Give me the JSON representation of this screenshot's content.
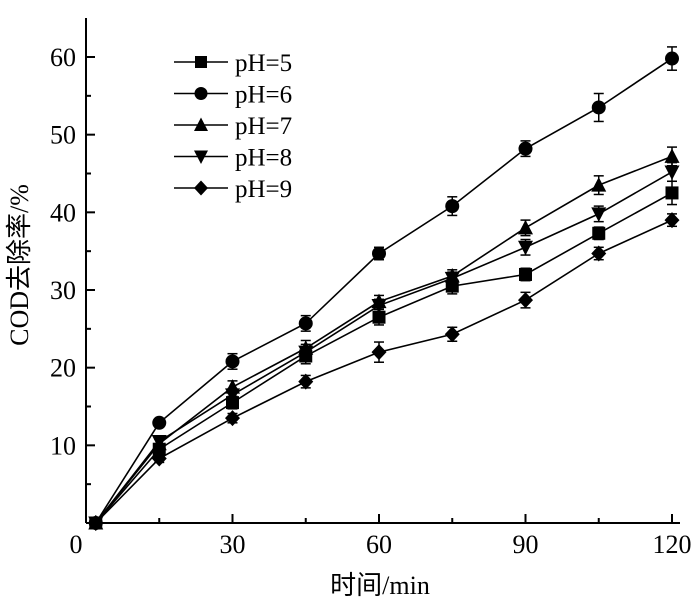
{
  "chart_data": {
    "type": "line",
    "xlabel": "时间/min",
    "ylabel": "COD去除率/%",
    "xlim": [
      0,
      120
    ],
    "ylim": [
      0,
      65
    ],
    "xticks": [
      0,
      30,
      60,
      90,
      120
    ],
    "yticks": [
      10,
      20,
      30,
      40,
      50,
      60
    ],
    "legend_position": "top-left",
    "grid": false,
    "x": [
      2,
      15,
      30,
      45,
      60,
      75,
      90,
      105,
      120
    ],
    "series": [
      {
        "name": "pH=5",
        "marker": "square",
        "values": [
          0,
          9.5,
          15.5,
          21.5,
          26.5,
          30.5,
          32,
          37.3,
          42.5
        ],
        "errors": [
          0,
          0.6,
          0.8,
          1.0,
          1.0,
          1.0,
          0.8,
          0.8,
          1.5
        ]
      },
      {
        "name": "pH=6",
        "marker": "circle",
        "values": [
          0,
          12.9,
          20.8,
          25.7,
          34.7,
          40.8,
          48.2,
          53.5,
          59.8
        ],
        "errors": [
          0,
          0.5,
          1.0,
          1.0,
          0.8,
          1.2,
          1.0,
          1.8,
          1.5
        ]
      },
      {
        "name": "pH=7",
        "marker": "triangle-up",
        "values": [
          0,
          10.2,
          17.5,
          22.5,
          28.5,
          31.8,
          38,
          43.5,
          47.2
        ],
        "errors": [
          0,
          0.6,
          0.8,
          1.0,
          0.8,
          0.8,
          1.0,
          1.2,
          1.2
        ]
      },
      {
        "name": "pH=8",
        "marker": "triangle-down",
        "values": [
          0,
          10.5,
          16.5,
          22,
          28,
          31.5,
          35.5,
          39.8,
          45.2
        ],
        "errors": [
          0,
          0.6,
          0.8,
          1.0,
          0.8,
          0.8,
          1.0,
          1.0,
          1.2
        ]
      },
      {
        "name": "pH=9",
        "marker": "diamond",
        "values": [
          0,
          8.3,
          13.5,
          18.2,
          22,
          24.3,
          28.7,
          34.7,
          39
        ],
        "errors": [
          0,
          0.5,
          0.6,
          0.8,
          1.3,
          0.9,
          1.0,
          0.8,
          0.8
        ]
      }
    ]
  }
}
